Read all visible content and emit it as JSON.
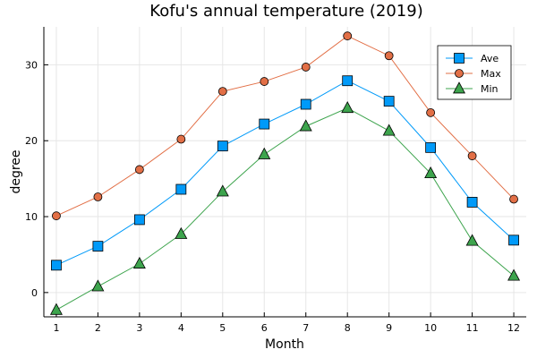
{
  "chart_data": {
    "type": "line",
    "title": "Kofu's annual temperature (2019)",
    "xlabel": "Month",
    "ylabel": "degree",
    "x": [
      1,
      2,
      3,
      4,
      5,
      6,
      7,
      8,
      9,
      10,
      11,
      12
    ],
    "xlim": [
      0.7,
      12.3
    ],
    "ylim": [
      -3.2,
      35
    ],
    "yticks": [
      0,
      10,
      20,
      30
    ],
    "grid": true,
    "legend_position": "top-right",
    "series": [
      {
        "name": "Ave",
        "marker": "square",
        "color": "#009af9",
        "values": [
          3.6,
          6.1,
          9.6,
          13.6,
          19.3,
          22.2,
          24.8,
          27.9,
          25.2,
          19.1,
          11.9,
          6.9
        ]
      },
      {
        "name": "Max",
        "marker": "circle",
        "color": "#e26f46",
        "values": [
          10.1,
          12.6,
          16.2,
          20.2,
          26.5,
          27.8,
          29.7,
          33.8,
          31.2,
          23.7,
          18.0,
          12.3
        ]
      },
      {
        "name": "Min",
        "marker": "triangle",
        "color": "#3da44d",
        "values": [
          -2.3,
          0.8,
          3.8,
          7.7,
          13.3,
          18.2,
          21.9,
          24.3,
          21.3,
          15.7,
          6.8,
          2.2
        ]
      }
    ]
  }
}
